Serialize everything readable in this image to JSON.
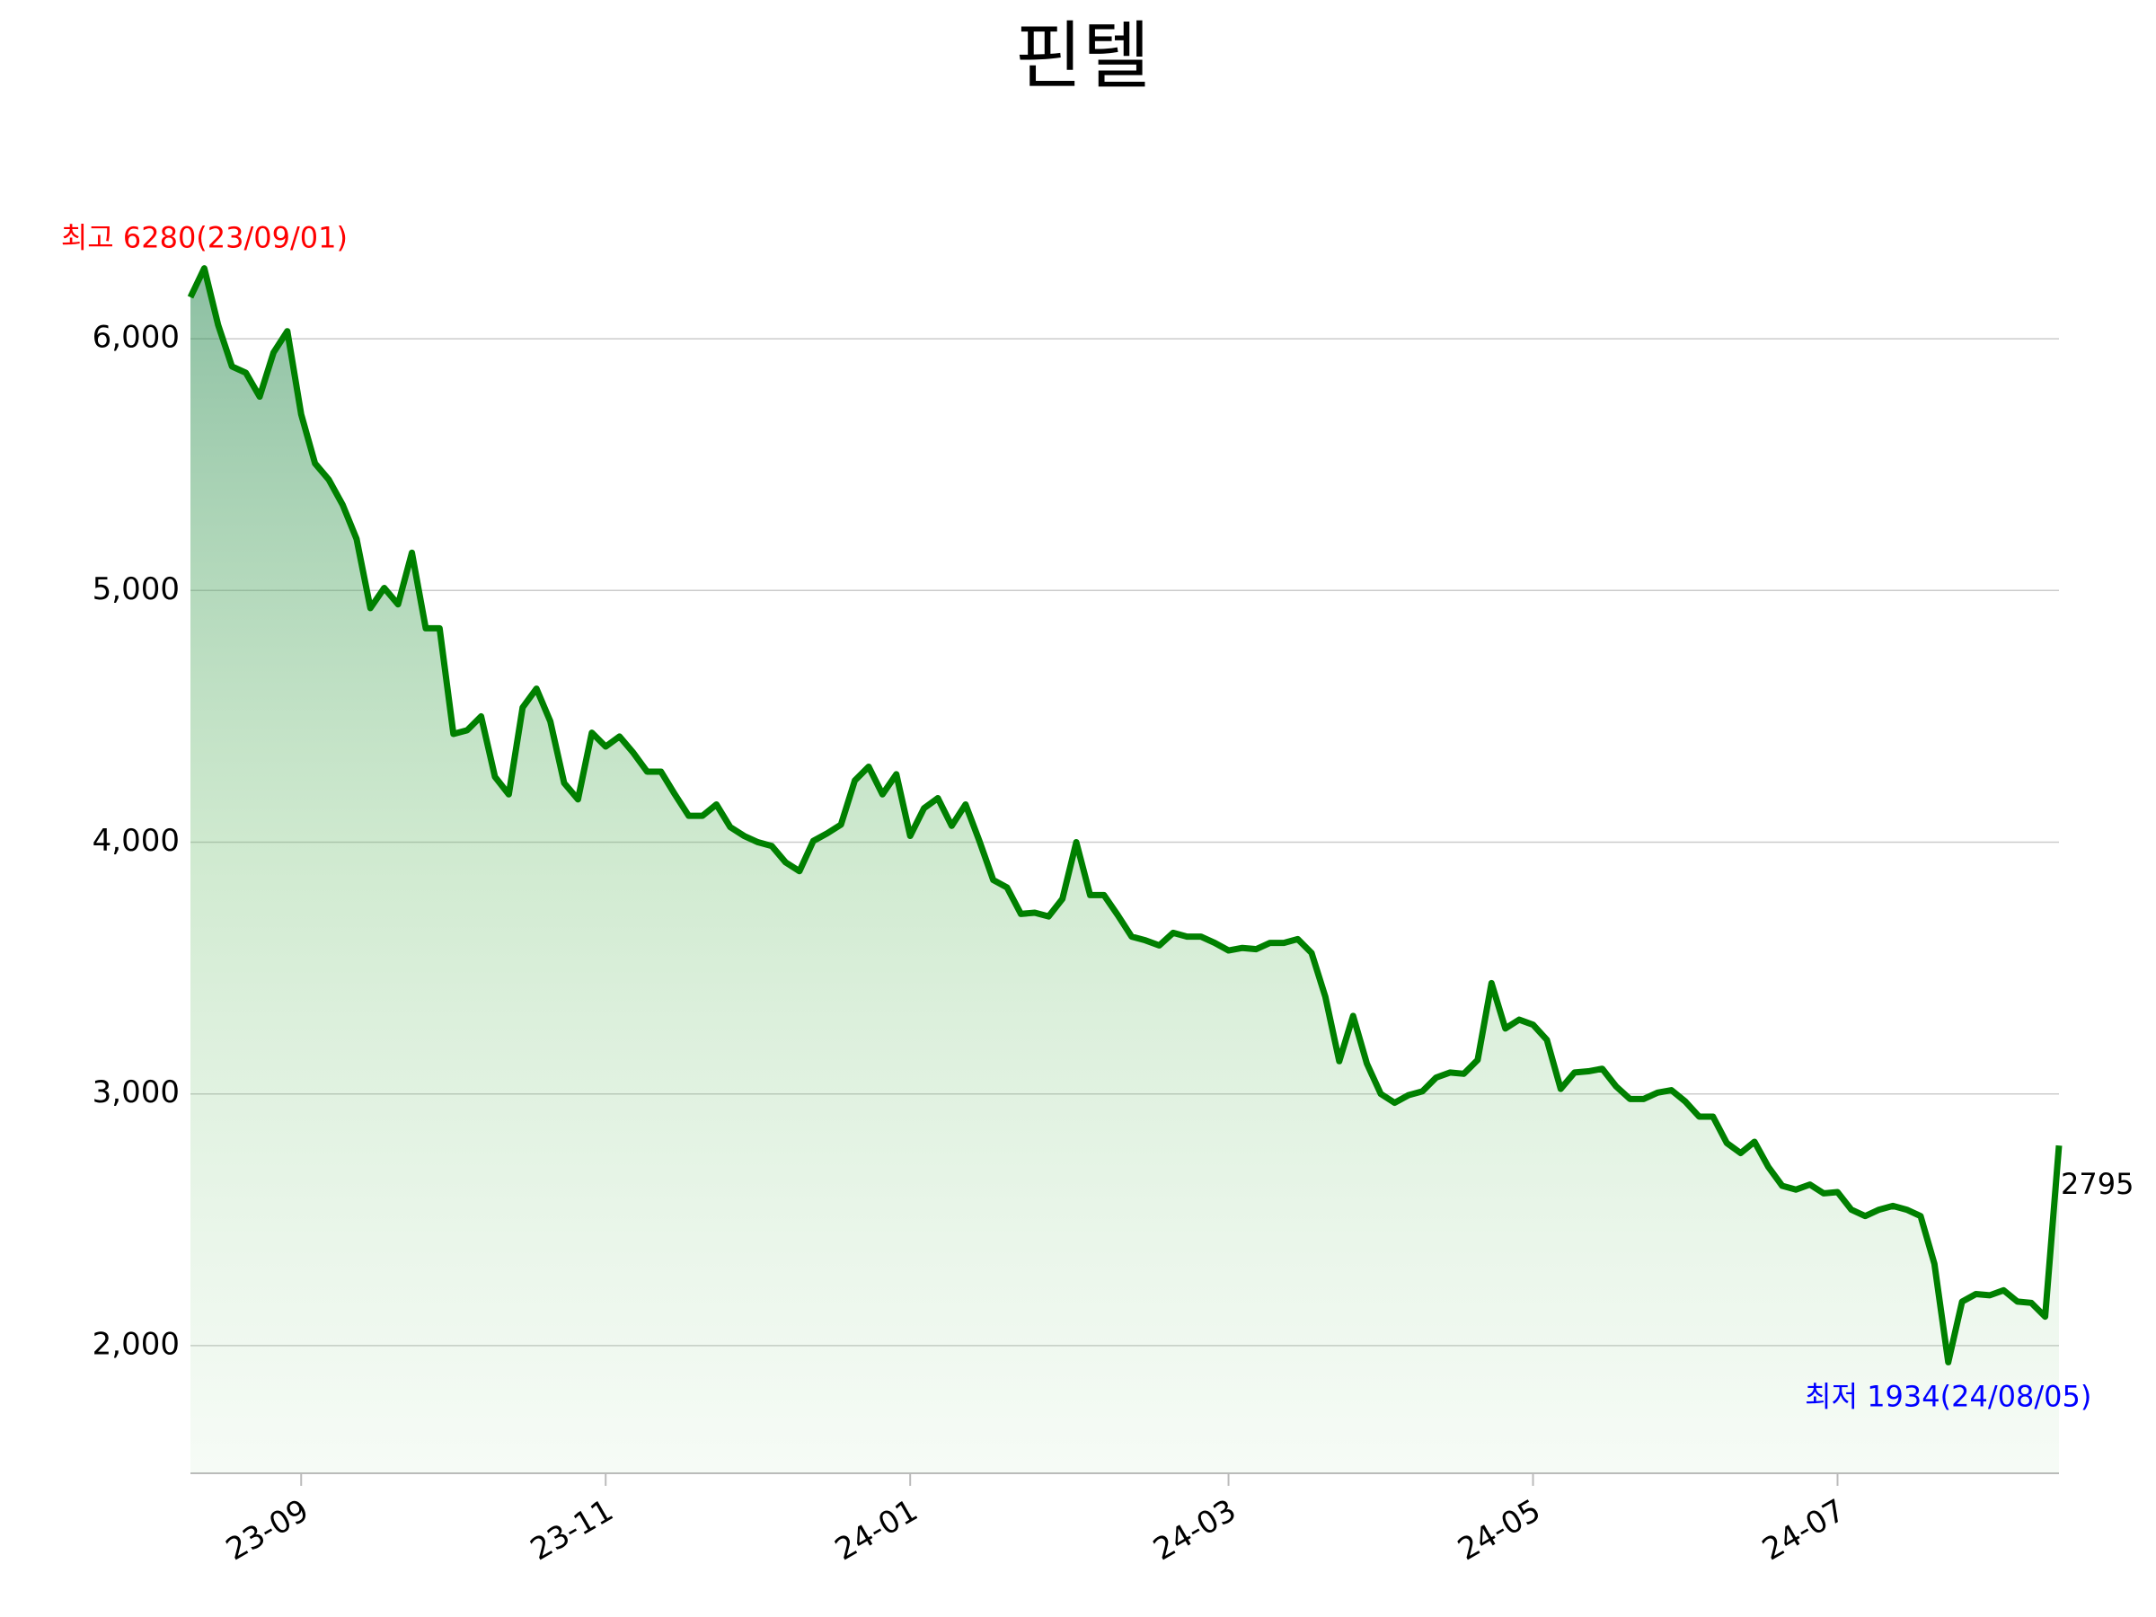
{
  "chart_data": {
    "type": "area-line",
    "title": "핀텔",
    "categories": [
      null,
      null,
      null,
      null,
      null,
      null,
      null,
      null,
      "23-09",
      null,
      null,
      null,
      null,
      null,
      null,
      null,
      null,
      null,
      null,
      null,
      null,
      null,
      null,
      null,
      null,
      null,
      null,
      null,
      null,
      null,
      "23-11",
      null,
      null,
      null,
      null,
      null,
      null,
      null,
      null,
      null,
      null,
      null,
      null,
      null,
      null,
      null,
      null,
      null,
      null,
      null,
      null,
      null,
      "24-01",
      null,
      null,
      null,
      null,
      null,
      null,
      null,
      null,
      null,
      null,
      null,
      null,
      null,
      null,
      null,
      null,
      null,
      null,
      null,
      null,
      null,
      null,
      "24-03",
      null,
      null,
      null,
      null,
      null,
      null,
      null,
      null,
      null,
      null,
      null,
      null,
      null,
      null,
      null,
      null,
      null,
      null,
      null,
      null,
      null,
      "24-05",
      null,
      null,
      null,
      null,
      null,
      null,
      null,
      null,
      null,
      null,
      null,
      null,
      null,
      null,
      null,
      null,
      null,
      null,
      null,
      null,
      null,
      "24-07",
      null,
      null,
      null,
      null,
      null,
      null,
      null,
      null,
      null,
      null,
      null,
      null,
      null,
      null,
      null,
      null
    ],
    "series": [
      {
        "name": "핀텔",
        "color": "#008000",
        "values": [
          6165,
          6280,
          6055,
          5890,
          5865,
          5770,
          5945,
          6030,
          5700,
          5505,
          5440,
          5340,
          5205,
          4930,
          5010,
          4945,
          5150,
          4850,
          4850,
          4430,
          4445,
          4500,
          4260,
          4190,
          4535,
          4610,
          4480,
          4235,
          4170,
          4435,
          4380,
          4420,
          4355,
          4280,
          4280,
          4190,
          4105,
          4105,
          4150,
          4060,
          4025,
          4000,
          3985,
          3920,
          3885,
          4005,
          4035,
          4070,
          4245,
          4300,
          4190,
          4270,
          4025,
          4135,
          4175,
          4065,
          4150,
          4005,
          3850,
          3820,
          3715,
          3720,
          3705,
          3775,
          4000,
          3790,
          3790,
          3710,
          3625,
          3610,
          3590,
          3640,
          3625,
          3625,
          3600,
          3570,
          3580,
          3575,
          3600,
          3600,
          3615,
          3560,
          3385,
          3130,
          3310,
          3120,
          3000,
          2965,
          2995,
          3010,
          3065,
          3085,
          3080,
          3135,
          3440,
          3260,
          3295,
          3275,
          3215,
          3020,
          3085,
          3090,
          3100,
          3030,
          2980,
          2980,
          3005,
          3015,
          2970,
          2910,
          2910,
          2805,
          2765,
          2810,
          2710,
          2635,
          2620,
          2640,
          2605,
          2610,
          2540,
          2515,
          2540,
          2555,
          2540,
          2515,
          2325,
          1934,
          2175,
          2205,
          2200,
          2220,
          2175,
          2170,
          2115,
          2795
        ]
      }
    ],
    "ylim": [
      1493,
      6500
    ],
    "yticks": [
      {
        "value": 2000,
        "label": "2,000"
      },
      {
        "value": 3000,
        "label": "3,000"
      },
      {
        "value": 4000,
        "label": "4,000"
      },
      {
        "value": 5000,
        "label": "5,000"
      },
      {
        "value": 6000,
        "label": "6,000"
      }
    ],
    "grid": true,
    "max_label": "최고 6280(23/09/01)",
    "min_label": "최저 1934(24/08/05)"
  }
}
